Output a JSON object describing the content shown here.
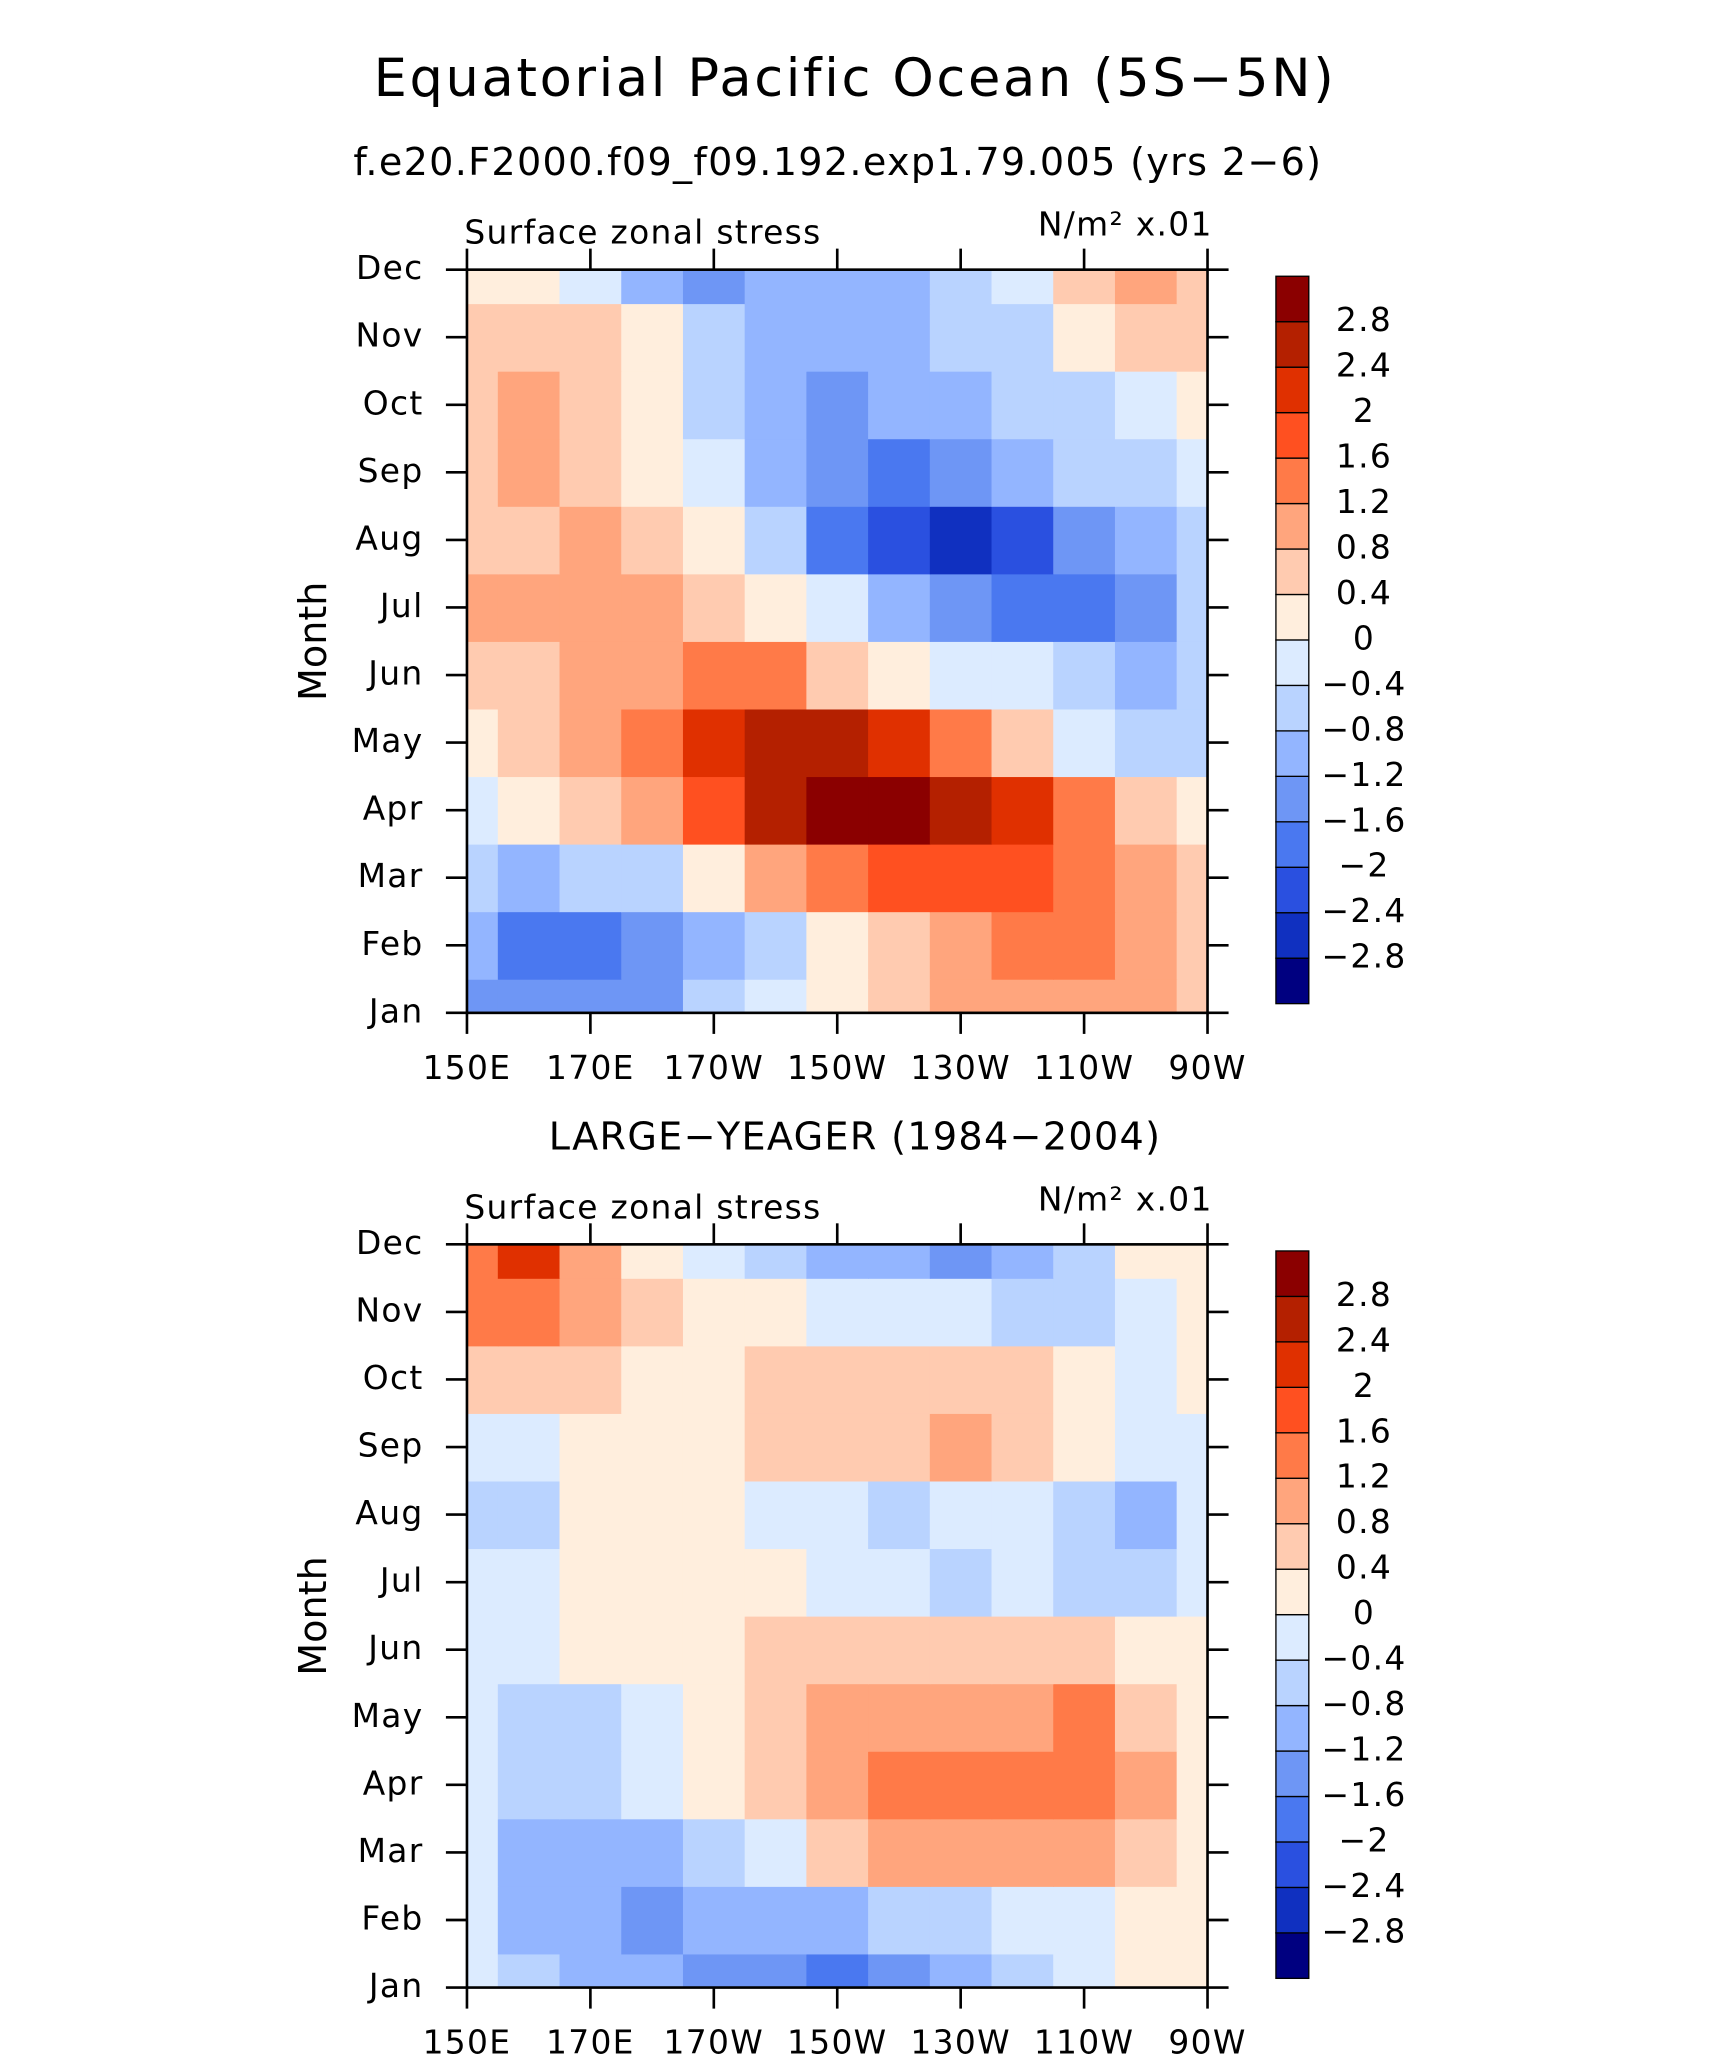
{
  "chart_data": [
    {
      "type": "contour",
      "title": "Equatorial Pacific Ocean (5S−5N)",
      "subtitle": "f.e20.F2000.f09_f09.192.exp1.79.005 (yrs 2−6)",
      "left_label": "Surface zonal stress",
      "right_label": "N/m² x.01",
      "ylabel": "Month",
      "categories": [
        "Jan",
        "Feb",
        "Mar",
        "Apr",
        "May",
        "Jun",
        "Jul",
        "Aug",
        "Sep",
        "Oct",
        "Nov",
        "Dec"
      ],
      "x": [
        150,
        160,
        170,
        180,
        190,
        200,
        210,
        220,
        230,
        240,
        250,
        260,
        270
      ],
      "xlim": [
        150,
        270
      ],
      "xticks": [
        {
          "value": 150,
          "label": "150E"
        },
        {
          "value": 170,
          "label": "170E"
        },
        {
          "value": 190,
          "label": "170W"
        },
        {
          "value": 210,
          "label": "150W"
        },
        {
          "value": 230,
          "label": "130W"
        },
        {
          "value": 250,
          "label": "110W"
        },
        {
          "value": 270,
          "label": "90W"
        }
      ],
      "levels": [
        {
          "value": -2.8,
          "label": "−2.8"
        },
        {
          "value": -2.4,
          "label": "−2.4"
        },
        {
          "value": -2,
          "label": "−2"
        },
        {
          "value": -1.6,
          "label": "−1.6"
        },
        {
          "value": -1.2,
          "label": "−1.2"
        },
        {
          "value": -0.8,
          "label": "−0.8"
        },
        {
          "value": -0.4,
          "label": "−0.4"
        },
        0,
        0.4,
        0.8,
        1.2,
        1.6,
        2,
        2.4,
        2.8
      ],
      "colors": [
        "#000080",
        "#1030c0",
        "#2a50e0",
        "#4a78f0",
        "#6e96f5",
        "#93b5ff",
        "#b9d3ff",
        "#dcebff",
        "#ffeedd",
        "#ffcbb0",
        "#ffa57d",
        "#ff7a48",
        "#ff5020",
        "#e03000",
        "#b42000",
        "#8b0000"
      ],
      "values": [
        [
          -1.4,
          -1.6,
          -1.6,
          -1.4,
          -0.8,
          -0.4,
          0.2,
          0.6,
          1.0,
          1.0,
          1.0,
          1.0,
          0.4
        ],
        [
          -1.2,
          -1.8,
          -1.8,
          -1.6,
          -1.2,
          -0.6,
          0,
          0.4,
          0.8,
          1.2,
          1.4,
          1.0,
          0.6
        ],
        [
          -0.6,
          -1.0,
          -0.8,
          -0.6,
          0.2,
          0.8,
          1.4,
          1.8,
          1.8,
          1.6,
          1.2,
          1.0,
          0.6
        ],
        [
          -0.2,
          0,
          0.4,
          1.0,
          1.8,
          2.6,
          3.0,
          3.0,
          2.6,
          2.0,
          1.2,
          0.6,
          0.2
        ],
        [
          0.2,
          0.6,
          0.8,
          1.4,
          2.2,
          2.6,
          2.6,
          2.0,
          1.2,
          0.4,
          -0.4,
          -0.8,
          -0.6
        ],
        [
          0.6,
          0.6,
          0.8,
          1.0,
          1.4,
          1.2,
          0.6,
          0.2,
          -0.2,
          -0.4,
          -0.8,
          -1.2,
          -0.8
        ],
        [
          0.8,
          0.8,
          1.0,
          1.0,
          0.6,
          0.2,
          -0.4,
          -1.2,
          -1.6,
          -2.0,
          -1.8,
          -1.6,
          -0.8
        ],
        [
          0.6,
          0.6,
          0.8,
          0.4,
          0.2,
          -0.8,
          -1.8,
          -2.4,
          -2.6,
          -2.2,
          -1.6,
          -1.2,
          -0.6
        ],
        [
          0.6,
          0.8,
          0.6,
          0.2,
          -0.4,
          -1.2,
          -1.6,
          -1.8,
          -1.4,
          -1.0,
          -0.8,
          -0.6,
          -0.4
        ],
        [
          0.6,
          0.8,
          0.6,
          0.2,
          -0.6,
          -1.2,
          -1.4,
          -1.2,
          -1.0,
          -0.8,
          -0.6,
          -0.4,
          0
        ],
        [
          0.4,
          0.6,
          0.4,
          0,
          -0.6,
          -1.0,
          -1.2,
          -1.0,
          -0.8,
          -0.6,
          0,
          0.4,
          0.6
        ],
        [
          0.2,
          0,
          -0.4,
          -1.0,
          -1.4,
          -1.2,
          -1.0,
          -1.0,
          -0.8,
          -0.4,
          0.4,
          0.8,
          0.6
        ]
      ]
    },
    {
      "type": "contour",
      "title": "LARGE−YEAGER (1984−2004)",
      "left_label": "Surface zonal stress",
      "right_label": "N/m² x.01",
      "ylabel": "Month",
      "categories": [
        "Jan",
        "Feb",
        "Mar",
        "Apr",
        "May",
        "Jun",
        "Jul",
        "Aug",
        "Sep",
        "Oct",
        "Nov",
        "Dec"
      ],
      "x": [
        150,
        160,
        170,
        180,
        190,
        200,
        210,
        220,
        230,
        240,
        250,
        260,
        270
      ],
      "xlim": [
        150,
        270
      ],
      "xticks": [
        {
          "value": 150,
          "label": "150E"
        },
        {
          "value": 170,
          "label": "170E"
        },
        {
          "value": 190,
          "label": "170W"
        },
        {
          "value": 210,
          "label": "150W"
        },
        {
          "value": 230,
          "label": "130W"
        },
        {
          "value": 250,
          "label": "110W"
        },
        {
          "value": 270,
          "label": "90W"
        }
      ],
      "levels": [
        {
          "value": -2.8,
          "label": "−2.8"
        },
        {
          "value": -2.4,
          "label": "−2.4"
        },
        {
          "value": -2,
          "label": "−2"
        },
        {
          "value": -1.6,
          "label": "−1.6"
        },
        {
          "value": -1.2,
          "label": "−1.2"
        },
        {
          "value": -0.8,
          "label": "−0.8"
        },
        {
          "value": -0.4,
          "label": "−0.4"
        },
        0,
        0.4,
        0.8,
        1.2,
        1.6,
        2,
        2.4,
        2.8
      ],
      "colors": [
        "#000080",
        "#1030c0",
        "#2a50e0",
        "#4a78f0",
        "#6e96f5",
        "#93b5ff",
        "#b9d3ff",
        "#dcebff",
        "#ffeedd",
        "#ffcbb0",
        "#ffa57d",
        "#ff7a48",
        "#ff5020",
        "#e03000",
        "#b42000",
        "#8b0000"
      ],
      "values": [
        [
          -0.2,
          -0.6,
          -1.0,
          -1.2,
          -1.6,
          -1.6,
          -1.8,
          -1.6,
          -1.2,
          -0.8,
          -0.4,
          0,
          0.2
        ],
        [
          -0.4,
          -1.0,
          -1.2,
          -1.4,
          -1.2,
          -1.0,
          -1.0,
          -0.8,
          -0.6,
          -0.4,
          -0.2,
          0.2,
          0.2
        ],
        [
          -0.4,
          -1.0,
          -1.2,
          -1.2,
          -0.8,
          -0.2,
          0.4,
          0.8,
          0.8,
          1.0,
          0.8,
          0.6,
          0.2
        ],
        [
          -0.4,
          -0.6,
          -0.8,
          -0.4,
          0.2,
          0.6,
          1.0,
          1.2,
          1.2,
          1.4,
          1.4,
          0.8,
          0
        ],
        [
          -0.4,
          -0.6,
          -0.6,
          -0.2,
          0.2,
          0.6,
          0.8,
          0.8,
          1.0,
          1.0,
          1.2,
          0.6,
          0
        ],
        [
          -0.4,
          -0.4,
          0,
          0.2,
          0.2,
          0.4,
          0.6,
          0.6,
          0.6,
          0.6,
          0.4,
          0.2,
          0
        ],
        [
          -0.4,
          -0.2,
          0.2,
          0.2,
          0.2,
          0,
          -0.2,
          -0.4,
          -0.6,
          -0.4,
          -0.6,
          -0.8,
          -0.2
        ],
        [
          -0.8,
          -0.6,
          0.2,
          0.2,
          0.2,
          -0.2,
          -0.4,
          -0.6,
          -0.4,
          -0.2,
          -0.8,
          -1.0,
          -0.4
        ],
        [
          -0.4,
          -0.4,
          0.2,
          0.2,
          0.2,
          0.4,
          0.6,
          0.6,
          0.8,
          0.4,
          0,
          -0.4,
          -0.2
        ],
        [
          0.6,
          0.4,
          0.6,
          0.2,
          0.2,
          0.6,
          0.6,
          0.4,
          0.6,
          0.4,
          0,
          -0.4,
          0.2
        ],
        [
          1.2,
          1.4,
          0.8,
          0.4,
          0.2,
          0,
          -0.2,
          -0.2,
          -0.4,
          -0.6,
          -0.6,
          -0.2,
          0.2
        ],
        [
          1.4,
          2.0,
          0.8,
          0.2,
          -0.2,
          -0.6,
          -1.0,
          -1.2,
          -1.4,
          -1.2,
          -0.6,
          0,
          0.2
        ]
      ]
    }
  ]
}
